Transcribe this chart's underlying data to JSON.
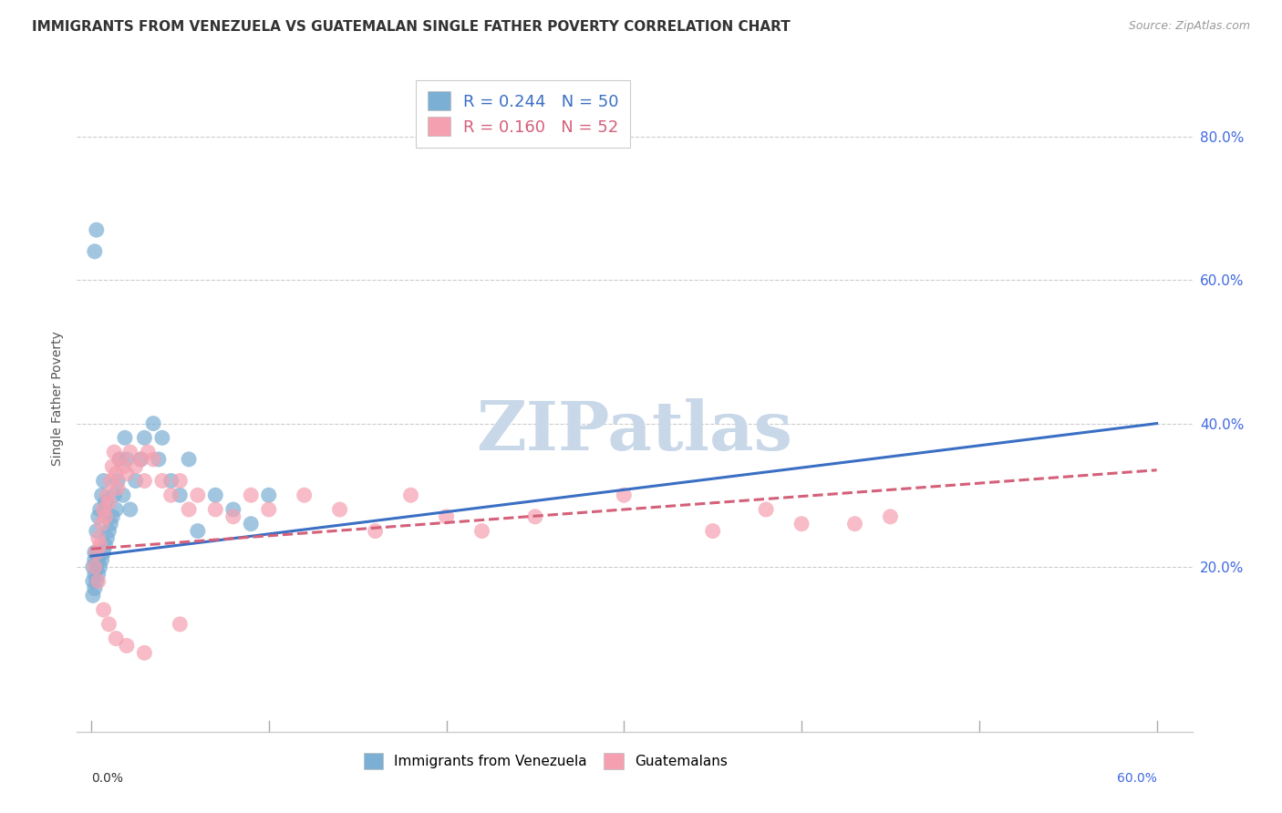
{
  "title": "IMMIGRANTS FROM VENEZUELA VS GUATEMALAN SINGLE FATHER POVERTY CORRELATION CHART",
  "source": "Source: ZipAtlas.com",
  "ylabel": "Single Father Poverty",
  "right_yticks": [
    "80.0%",
    "60.0%",
    "40.0%",
    "20.0%"
  ],
  "right_ytick_vals": [
    0.8,
    0.6,
    0.4,
    0.2
  ],
  "xlim": [
    0.0,
    0.6
  ],
  "ylim": [
    0.0,
    0.9
  ],
  "series1_color": "#7bafd4",
  "series2_color": "#f4a0b0",
  "trendline1_color": "#3a6fc4",
  "trendline2_color": "#d4607a",
  "watermark": "ZIPatlas",
  "watermark_color": "#c8d8e8",
  "series1_name": "Immigrants from Venezuela",
  "series2_name": "Guatemalans",
  "series1_x": [
    0.001,
    0.001,
    0.001,
    0.002,
    0.002,
    0.002,
    0.002,
    0.003,
    0.003,
    0.003,
    0.003,
    0.004,
    0.004,
    0.004,
    0.005,
    0.005,
    0.006,
    0.006,
    0.007,
    0.007,
    0.008,
    0.008,
    0.009,
    0.01,
    0.011,
    0.012,
    0.013,
    0.014,
    0.015,
    0.016,
    0.018,
    0.019,
    0.02,
    0.022,
    0.025,
    0.028,
    0.03,
    0.035,
    0.038,
    0.04,
    0.045,
    0.05,
    0.055,
    0.06,
    0.07,
    0.08,
    0.09,
    0.1,
    0.002,
    0.003
  ],
  "series1_y": [
    0.16,
    0.18,
    0.2,
    0.17,
    0.19,
    0.21,
    0.22,
    0.18,
    0.2,
    0.22,
    0.25,
    0.19,
    0.21,
    0.27,
    0.2,
    0.28,
    0.21,
    0.3,
    0.22,
    0.32,
    0.23,
    0.29,
    0.24,
    0.25,
    0.26,
    0.27,
    0.3,
    0.28,
    0.32,
    0.35,
    0.3,
    0.38,
    0.35,
    0.28,
    0.32,
    0.35,
    0.38,
    0.4,
    0.35,
    0.38,
    0.32,
    0.3,
    0.35,
    0.25,
    0.3,
    0.28,
    0.26,
    0.3,
    0.64,
    0.67
  ],
  "series2_x": [
    0.002,
    0.003,
    0.004,
    0.005,
    0.006,
    0.007,
    0.008,
    0.009,
    0.01,
    0.011,
    0.012,
    0.013,
    0.014,
    0.015,
    0.016,
    0.018,
    0.02,
    0.022,
    0.025,
    0.028,
    0.03,
    0.032,
    0.035,
    0.04,
    0.045,
    0.05,
    0.055,
    0.06,
    0.07,
    0.08,
    0.09,
    0.1,
    0.12,
    0.14,
    0.16,
    0.18,
    0.2,
    0.22,
    0.25,
    0.3,
    0.35,
    0.38,
    0.4,
    0.43,
    0.45,
    0.004,
    0.007,
    0.01,
    0.014,
    0.02,
    0.03,
    0.05
  ],
  "series2_y": [
    0.2,
    0.22,
    0.24,
    0.23,
    0.26,
    0.28,
    0.27,
    0.3,
    0.29,
    0.32,
    0.34,
    0.36,
    0.33,
    0.31,
    0.35,
    0.34,
    0.33,
    0.36,
    0.34,
    0.35,
    0.32,
    0.36,
    0.35,
    0.32,
    0.3,
    0.32,
    0.28,
    0.3,
    0.28,
    0.27,
    0.3,
    0.28,
    0.3,
    0.28,
    0.25,
    0.3,
    0.27,
    0.25,
    0.27,
    0.3,
    0.25,
    0.28,
    0.26,
    0.26,
    0.27,
    0.18,
    0.14,
    0.12,
    0.1,
    0.09,
    0.08,
    0.12
  ],
  "trendline1_x_start": 0.0,
  "trendline1_x_end": 0.6,
  "trendline1_y_start": 0.215,
  "trendline1_y_end": 0.4,
  "trendline2_x_start": 0.0,
  "trendline2_x_end": 0.6,
  "trendline2_y_start": 0.225,
  "trendline2_y_end": 0.335,
  "grid_color": "#cccccc",
  "spine_color": "#cccccc",
  "xtick_positions": [
    0.0,
    0.1,
    0.2,
    0.3,
    0.4,
    0.5,
    0.6
  ]
}
